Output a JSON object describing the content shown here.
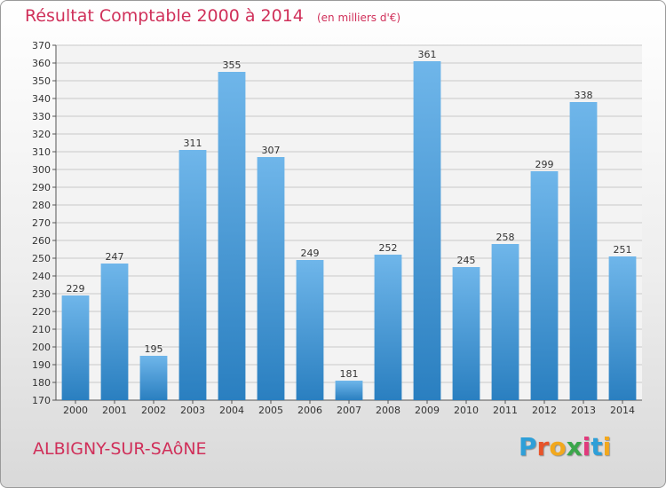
{
  "title": "Résultat Comptable 2000 à 2014",
  "subtitle": "(en milliers d'€)",
  "commune": "ALBIGNY-SUR-SAôNE",
  "logo": {
    "letters": [
      "P",
      "r",
      "o",
      "x",
      "i",
      "t",
      "i"
    ],
    "colors": [
      "#2e9fd8",
      "#e8542a",
      "#f2a81d",
      "#3aa64a",
      "#e03a7c",
      "#2e9fd8",
      "#f2a81d"
    ]
  },
  "colors": {
    "accent": "#d0305a",
    "bar_light": "#6fb6ea",
    "bar_dark": "#2a7fc0",
    "grid": "#c9c9c9"
  },
  "chart_data": {
    "type": "bar",
    "categories": [
      "2000",
      "2001",
      "2002",
      "2003",
      "2004",
      "2005",
      "2006",
      "2007",
      "2008",
      "2009",
      "2010",
      "2011",
      "2012",
      "2013",
      "2014"
    ],
    "values": [
      229,
      247,
      195,
      311,
      355,
      307,
      249,
      181,
      252,
      361,
      245,
      258,
      299,
      338,
      251
    ],
    "ylim": [
      170,
      370
    ],
    "ytick_step": 10,
    "grid": true,
    "xlabel": "",
    "ylabel": ""
  }
}
